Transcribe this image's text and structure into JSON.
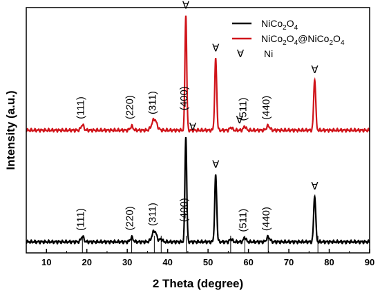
{
  "chart_data": {
    "type": "line",
    "xlabel": "2 Theta (degree)",
    "ylabel": "Intensity (a.u.)",
    "xlim": [
      5,
      90
    ],
    "ylim": [
      0,
      1
    ],
    "x_ticks": [
      10,
      20,
      30,
      40,
      50,
      60,
      70,
      80,
      90
    ],
    "y_tick_labels": false,
    "legend_position": "top-right",
    "series": [
      {
        "name": "NiCo2O4",
        "color": "#000000",
        "offset": 0.045,
        "peaks": [
          {
            "x": 18.9,
            "height": 0.022,
            "width": 0.35
          },
          {
            "x": 31.1,
            "height": 0.018,
            "width": 0.35
          },
          {
            "x": 36.7,
            "height": 0.045,
            "width": 0.55
          },
          {
            "x": 38.4,
            "height": 0.012,
            "width": 0.3
          },
          {
            "x": 44.5,
            "height": 0.43,
            "width": 0.22
          },
          {
            "x": 51.9,
            "height": 0.27,
            "width": 0.25
          },
          {
            "x": 55.7,
            "height": 0.012,
            "width": 0.3
          },
          {
            "x": 59.1,
            "height": 0.018,
            "width": 0.3
          },
          {
            "x": 64.9,
            "height": 0.02,
            "width": 0.4
          },
          {
            "x": 76.4,
            "height": 0.19,
            "width": 0.25
          }
        ]
      },
      {
        "name": "NiCo2O4@NiCo2O4",
        "color": "#d0141a",
        "offset": 0.5,
        "peaks": [
          {
            "x": 18.9,
            "height": 0.022,
            "width": 0.35
          },
          {
            "x": 31.1,
            "height": 0.016,
            "width": 0.35
          },
          {
            "x": 36.7,
            "height": 0.045,
            "width": 0.6
          },
          {
            "x": 44.5,
            "height": 0.47,
            "width": 0.22
          },
          {
            "x": 51.9,
            "height": 0.29,
            "width": 0.25
          },
          {
            "x": 55.7,
            "height": 0.012,
            "width": 0.3
          },
          {
            "x": 59.1,
            "height": 0.016,
            "width": 0.3
          },
          {
            "x": 64.9,
            "height": 0.018,
            "width": 0.4
          },
          {
            "x": 76.4,
            "height": 0.21,
            "width": 0.25
          }
        ]
      }
    ],
    "reference_lines": [
      18.9,
      31.1,
      36.7,
      38.4,
      44.6,
      55.6,
      59.1,
      64.9,
      77.2
    ],
    "peak_labels": [
      {
        "text": "(111)",
        "x": 18.9,
        "series": 0
      },
      {
        "text": "(220)",
        "x": 31.1,
        "series": 0
      },
      {
        "text": "(311)",
        "x": 36.7,
        "series": 0
      },
      {
        "text": "(400)",
        "x": 44.5,
        "series": 0
      },
      {
        "text": "(511)",
        "x": 59.1,
        "series": 0
      },
      {
        "text": "(440)",
        "x": 64.9,
        "series": 0
      },
      {
        "text": "(111)",
        "x": 18.9,
        "series": 1
      },
      {
        "text": "(220)",
        "x": 31.1,
        "series": 1
      },
      {
        "text": "(311)",
        "x": 36.7,
        "series": 1
      },
      {
        "text": "(400)",
        "x": 44.5,
        "series": 1
      },
      {
        "text": "(511)",
        "x": 59.1,
        "series": 1
      },
      {
        "text": "(440)",
        "x": 64.9,
        "series": 1
      }
    ],
    "ni_markers": [
      {
        "symbol": "∀",
        "x": 44.5,
        "series": 0
      },
      {
        "symbol": "∀",
        "x": 51.9,
        "series": 0
      },
      {
        "symbol": "∀",
        "x": 76.4,
        "series": 0
      },
      {
        "symbol": "∀",
        "x": 44.5,
        "series": 1
      },
      {
        "symbol": "∀",
        "x": 51.9,
        "series": 1
      },
      {
        "symbol": "∀",
        "x": 57.8,
        "series": 1
      },
      {
        "symbol": "∀",
        "x": 76.4,
        "series": 1
      }
    ],
    "legend": [
      {
        "name": "NiCo2O4",
        "color": "#000000"
      },
      {
        "name": "NiCo2O4@NiCo2O4",
        "color": "#d0141a"
      },
      {
        "name": "Ni",
        "symbol": "∀"
      }
    ]
  }
}
